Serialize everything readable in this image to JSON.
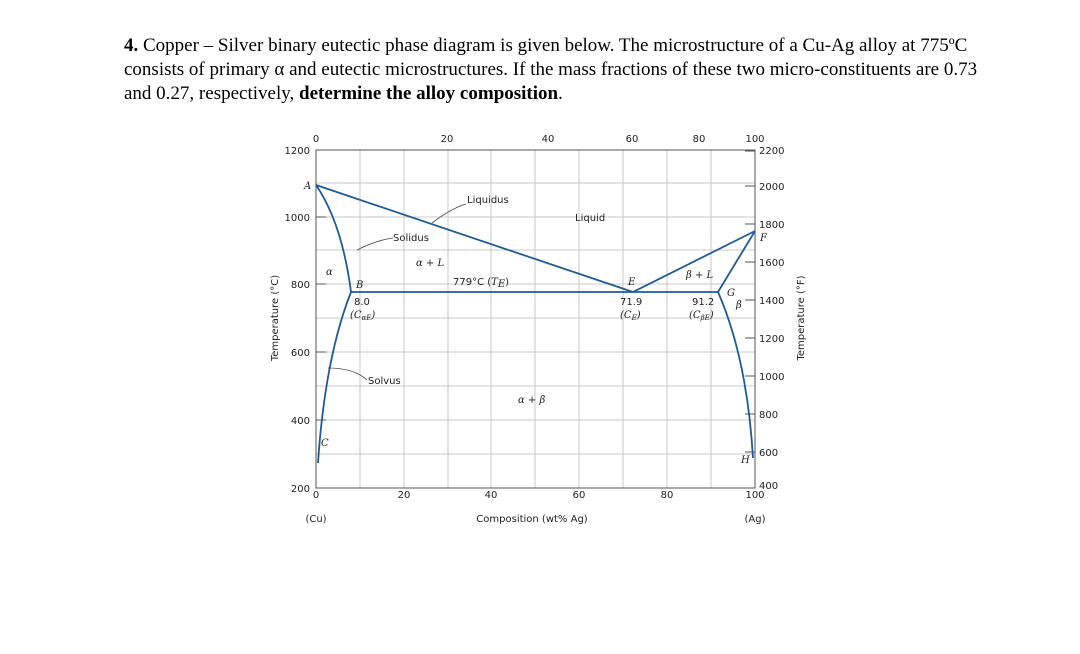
{
  "problem": {
    "number": "4.",
    "text": " Copper – Silver binary eutectic phase diagram is given below.  The microstructure of a Cu-Ag alloy at 775ºC consists of primary α and eutectic microstructures. If the mass fractions of these two micro-constituents are 0.73 and 0.27, respectively, ",
    "emphasis": "determine the alloy composition",
    "end": "."
  },
  "diagram": {
    "top_axis_ticks": [
      "0",
      "20",
      "40",
      "60",
      "80",
      "100"
    ],
    "bottom_axis_ticks": [
      "0",
      "20",
      "40",
      "60",
      "80",
      "100"
    ],
    "left_axis_ticks": [
      "1200",
      "1000",
      "800",
      "600",
      "400",
      "200"
    ],
    "right_axis_ticks": [
      "2200",
      "2000",
      "1800",
      "1600",
      "1400",
      "1200",
      "1000",
      "800",
      "600",
      "400"
    ],
    "left_axis_title": "Temperature (°C)",
    "right_axis_title": "Temperature (°F)",
    "x_axis_title": "Composition (wt% Ag)",
    "left_end_label": "(Cu)",
    "right_end_label": "(Ag)",
    "point_labels": {
      "A": "A",
      "B": "B",
      "C": "C",
      "E": "E",
      "F": "F",
      "G": "G",
      "H": "H"
    },
    "region_labels": {
      "liquidus": "Liquidus",
      "liquid": "Liquid",
      "solidus": "Solidus",
      "solvus": "Solvus",
      "alpha_plus_L": "α + L",
      "beta_plus_L": "β + L",
      "alpha": "α",
      "beta": "β",
      "alpha_plus_beta": "α + β"
    },
    "eutectic_temp_label": "779°C (",
    "eutectic_temp_sym": "T",
    "eutectic_temp_sub": "E",
    "eutectic_temp_close": ")",
    "c_alpha_e": {
      "value": "8.0",
      "sym": "(C",
      "sub": "αE",
      "close": ")"
    },
    "c_e": {
      "value": "71.9",
      "sym": "(C",
      "sub": "E",
      "close": ")"
    },
    "c_beta_e": {
      "value": "91.2",
      "sym": "(C",
      "sub": "βE",
      "close": ")"
    },
    "line_color": "#1f5b96",
    "grid_color": "#c8c8c8"
  }
}
